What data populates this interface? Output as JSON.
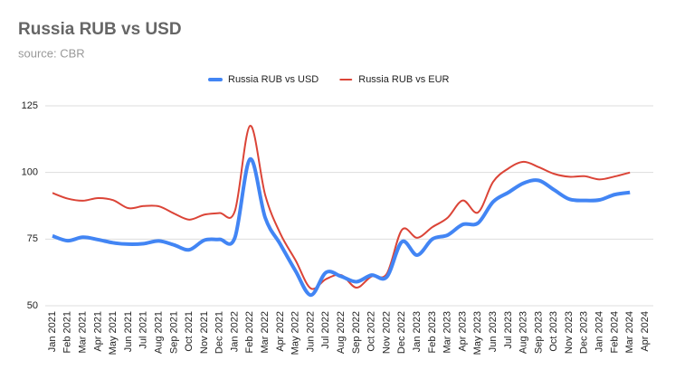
{
  "chart_data": {
    "type": "line",
    "title": "Russia RUB vs USD",
    "subtitle": "source: CBR",
    "categories": [
      "Jan 2021",
      "Feb 2021",
      "Mar 2021",
      "Apr 2021",
      "May 2021",
      "Jun 2021",
      "Jul 2021",
      "Aug 2021",
      "Sep 2021",
      "Oct 2021",
      "Nov 2021",
      "Dec 2021",
      "Jan 2022",
      "Feb 2022",
      "Mar 2022",
      "Apr 2022",
      "May 2022",
      "Jun 2022",
      "Jul 2022",
      "Aug 2022",
      "Sep 2022",
      "Oct 2022",
      "Nov 2022",
      "Dec 2022",
      "Jan 2023",
      "Feb 2023",
      "Mar 2023",
      "Apr 2023",
      "May 2023",
      "Jun 2023",
      "Jul 2023",
      "Aug 2023",
      "Sep 2023",
      "Oct 2023",
      "Nov 2023",
      "Dec 2023",
      "Jan 2024",
      "Feb 2024",
      "Mar 2024",
      "Apr 2024"
    ],
    "series": [
      {
        "name": "Russia RUB vs USD",
        "color": "#4285f4",
        "values": [
          76.2,
          74.4,
          75.7,
          74.8,
          73.6,
          73.1,
          73.3,
          74.3,
          72.8,
          71.0,
          74.6,
          74.9,
          75.5,
          105,
          83,
          73,
          63,
          54,
          62.5,
          61,
          59,
          61.5,
          60.8,
          74,
          69,
          75,
          76.5,
          80.5,
          81,
          89,
          92.5,
          96,
          97,
          93.5,
          90,
          89.5,
          89.7,
          91.7,
          92.5,
          null
        ]
      },
      {
        "name": "Russia RUB vs EUR",
        "color": "#db4437",
        "values": [
          92.3,
          90.2,
          89.4,
          90.4,
          89.6,
          86.6,
          87.4,
          87.3,
          84.6,
          82.3,
          84.2,
          84.8,
          85.5,
          117.5,
          91.5,
          77,
          67,
          56.5,
          60,
          61.5,
          56.8,
          61,
          62,
          78.5,
          75.5,
          79.5,
          83,
          89.5,
          85,
          96.5,
          101.5,
          104,
          102,
          99.5,
          98.4,
          98.6,
          97.4,
          98.5,
          100,
          null
        ]
      }
    ],
    "ylim": [
      50,
      125
    ],
    "yticks": [
      50,
      75,
      100,
      125
    ],
    "grid": true,
    "legend": "top"
  }
}
